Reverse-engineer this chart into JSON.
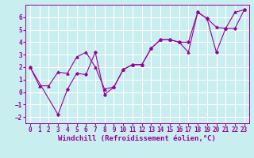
{
  "xlabel": "Windchill (Refroidissement éolien,°C)",
  "background_color": "#c8eef0",
  "grid_color": "#ffffff",
  "line_color": "#990099",
  "xlim": [
    -0.5,
    23.5
  ],
  "ylim": [
    -2.5,
    7.0
  ],
  "xticks": [
    0,
    1,
    2,
    3,
    4,
    5,
    6,
    7,
    8,
    9,
    10,
    11,
    12,
    13,
    14,
    15,
    16,
    17,
    18,
    19,
    20,
    21,
    22,
    23
  ],
  "yticks": [
    -2,
    -1,
    0,
    1,
    2,
    3,
    4,
    5,
    6
  ],
  "series1_x": [
    0,
    1,
    2,
    3,
    4,
    5,
    6,
    7,
    8,
    9,
    10,
    11,
    12,
    13,
    14,
    15,
    16,
    17,
    18,
    19,
    20,
    21,
    22,
    23
  ],
  "series1_y": [
    2.0,
    0.5,
    0.5,
    1.6,
    1.5,
    2.8,
    3.2,
    2.0,
    0.25,
    0.4,
    1.8,
    2.2,
    2.2,
    3.5,
    4.2,
    4.2,
    4.0,
    3.2,
    6.4,
    5.9,
    5.2,
    5.1,
    6.4,
    6.6
  ],
  "series2_x": [
    0,
    3,
    4,
    5,
    6,
    7,
    8,
    9,
    10,
    11,
    12,
    13,
    14,
    15,
    16,
    17,
    18,
    19,
    20,
    21,
    22,
    23
  ],
  "series2_y": [
    2.0,
    -1.8,
    0.2,
    1.5,
    1.4,
    3.2,
    -0.2,
    0.4,
    1.8,
    2.2,
    2.2,
    3.5,
    4.2,
    4.2,
    4.0,
    4.0,
    6.4,
    5.9,
    3.2,
    5.1,
    5.1,
    6.6
  ],
  "tick_fontsize": 5.5,
  "xlabel_fontsize": 6.5,
  "lw": 0.8
}
